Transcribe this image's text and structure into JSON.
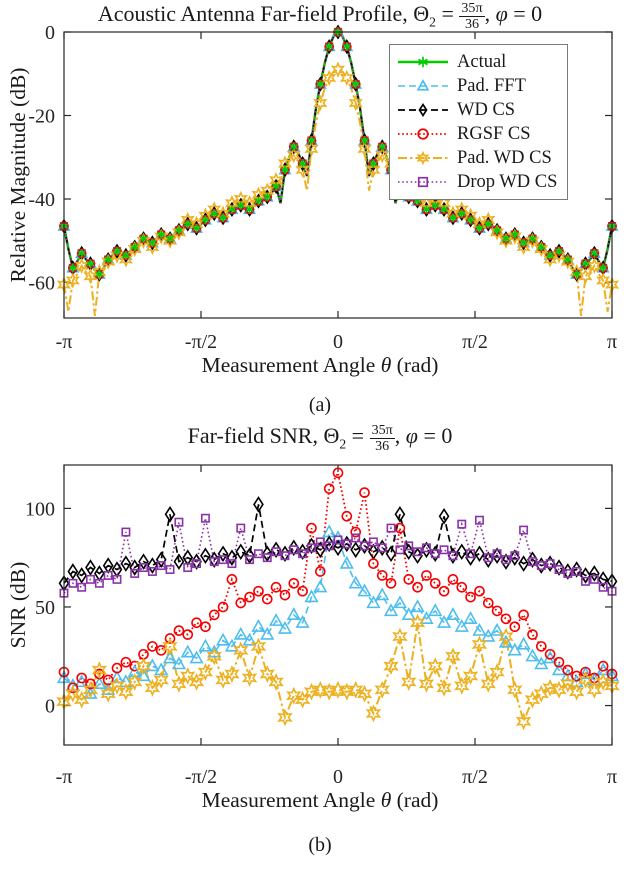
{
  "style": {
    "axis_color": "#262626",
    "background": "#ffffff",
    "text_color": "#1a1a1a",
    "legend_border": "#7a7a7a"
  },
  "chart_data": [
    {
      "type": "line",
      "title": "Acoustic Antenna Far-field Profile, Θ₂ = 35π/36, φ = 0",
      "title_parts": {
        "prefix": "Acoustic Antenna Far-field Profile, ",
        "theta": "Θ",
        "theta_sub": "2",
        "eq": " = ",
        "frac_num": "35π",
        "frac_den": "36",
        "comma": ", ",
        "phi": "φ",
        "phi_eq": " = 0"
      },
      "xlabel": "Measurement Angle θ (rad)",
      "xlabel_parts": {
        "pre": "Measurement Angle ",
        "sym": "θ",
        "post": " (rad)"
      },
      "ylabel": "Relative Magnitude (dB)",
      "caption": "(a)",
      "grid": false,
      "legend_position": "upper right",
      "xlim": [
        -3.1416,
        3.1416
      ],
      "ylim": [
        -68.5,
        0
      ],
      "xticks": [
        -3.1416,
        -1.5708,
        0,
        1.5708,
        3.1416
      ],
      "xtick_labels": [
        "-π",
        "-π/2",
        "0",
        "π/2",
        "π"
      ],
      "yticks": [
        0,
        -20,
        -40,
        -60
      ],
      "ytick_labels": [
        "0",
        "-20",
        "-40",
        "-60"
      ],
      "marker_every": 2,
      "x": [
        -3.142,
        -3.091,
        -3.04,
        -2.99,
        -2.939,
        -2.888,
        -2.838,
        -2.787,
        -2.736,
        -2.686,
        -2.635,
        -2.584,
        -2.534,
        -2.483,
        -2.432,
        -2.382,
        -2.331,
        -2.28,
        -2.23,
        -2.179,
        -2.128,
        -2.078,
        -2.027,
        -1.976,
        -1.926,
        -1.875,
        -1.824,
        -1.774,
        -1.723,
        -1.672,
        -1.622,
        -1.571,
        -1.52,
        -1.47,
        -1.419,
        -1.368,
        -1.318,
        -1.267,
        -1.216,
        -1.166,
        -1.115,
        -1.064,
        -1.014,
        -0.963,
        -0.912,
        -0.862,
        -0.811,
        -0.76,
        -0.71,
        -0.659,
        -0.608,
        -0.558,
        -0.507,
        -0.456,
        -0.406,
        -0.355,
        -0.304,
        -0.254,
        -0.203,
        -0.152,
        -0.101,
        -0.051,
        0,
        0.051,
        0.101,
        0.152,
        0.203,
        0.254,
        0.304,
        0.355,
        0.406,
        0.456,
        0.507,
        0.558,
        0.608,
        0.659,
        0.71,
        0.76,
        0.811,
        0.862,
        0.912,
        0.963,
        1.014,
        1.064,
        1.115,
        1.166,
        1.216,
        1.267,
        1.318,
        1.368,
        1.419,
        1.47,
        1.52,
        1.571,
        1.622,
        1.672,
        1.723,
        1.774,
        1.824,
        1.875,
        1.926,
        1.976,
        2.027,
        2.078,
        2.128,
        2.179,
        2.23,
        2.28,
        2.331,
        2.382,
        2.432,
        2.483,
        2.534,
        2.584,
        2.635,
        2.686,
        2.736,
        2.787,
        2.838,
        2.888,
        2.939,
        2.99,
        3.04,
        3.091,
        3.142
      ],
      "values": {
        "profile": [
          -46.5,
          -52,
          -56.5,
          -55,
          -53,
          -54.5,
          -55.5,
          -57,
          -58,
          -56.5,
          -54.5,
          -53.5,
          -52.5,
          -53,
          -53.5,
          -52.5,
          -51.5,
          -50.5,
          -49.5,
          -50,
          -50.5,
          -49.5,
          -48.5,
          -49,
          -49.5,
          -48.5,
          -47.5,
          -46.5,
          -46,
          -46.5,
          -47,
          -46,
          -45,
          -44,
          -43.5,
          -44,
          -44.5,
          -43.5,
          -42.5,
          -42,
          -41.5,
          -42,
          -42.5,
          -41.5,
          -40.5,
          -40,
          -39.5,
          -38.5,
          -37,
          -41,
          -33,
          -30,
          -27.5,
          -29,
          -31.5,
          -34.5,
          -26,
          -18.5,
          -12.5,
          -7.5,
          -3.5,
          -1,
          0,
          -1,
          -3.5,
          -7.5,
          -12.5,
          -18.5,
          -26,
          -34.5,
          -31.5,
          -29,
          -27.5,
          -30,
          -33,
          -41,
          -37,
          -38.5,
          -39.5,
          -40,
          -40.5,
          -41.5,
          -42.5,
          -42,
          -41.5,
          -42,
          -42.5,
          -43.5,
          -44.5,
          -44,
          -43.5,
          -44,
          -45,
          -46,
          -47,
          -46.5,
          -46,
          -46.5,
          -47.5,
          -48.5,
          -49.5,
          -49,
          -48.5,
          -49.5,
          -50.5,
          -50,
          -49.5,
          -50.5,
          -51.5,
          -52.5,
          -53.5,
          -53,
          -52.5,
          -53.5,
          -54.5,
          -56.5,
          -58,
          -57,
          -55.5,
          -54.5,
          -53,
          -55,
          -56.5,
          -52,
          -46.5
        ],
        "pad_wd_cs": [
          -60.5,
          -67,
          -59.5,
          -58,
          -56,
          -57.5,
          -58.5,
          -68,
          -57.5,
          -56.5,
          -55,
          -54.5,
          -53.5,
          -54,
          -54.5,
          -53.5,
          -52,
          -51,
          -50,
          -50.5,
          -51.5,
          -50,
          -49,
          -49.5,
          -50,
          -49,
          -48,
          -46.5,
          -45,
          -45.5,
          -46,
          -45,
          -44,
          -43,
          -42.5,
          -43,
          -43.5,
          -42.5,
          -41,
          -40.5,
          -40,
          -40.5,
          -41,
          -40,
          -39,
          -38.5,
          -38,
          -36.5,
          -35.5,
          -36,
          -31.5,
          -30,
          -29.5,
          -31,
          -33,
          -38,
          -28,
          -22,
          -17,
          -13.5,
          -11,
          -9.5,
          -9,
          -9.5,
          -11,
          -13.5,
          -17,
          -22,
          -28,
          -38,
          -33,
          -31,
          -29.5,
          -30,
          -31.5,
          -36,
          -35.5,
          -36.5,
          -38,
          -38.5,
          -39,
          -40,
          -41,
          -40.5,
          -40,
          -40.5,
          -41,
          -42.5,
          -43.5,
          -43,
          -42.5,
          -43,
          -44,
          -45,
          -46,
          -45.5,
          -45,
          -46.5,
          -48,
          -49,
          -50,
          -49.5,
          -49,
          -50,
          -51.5,
          -50.5,
          -50,
          -51,
          -52,
          -53.5,
          -54.5,
          -54,
          -53.5,
          -54.5,
          -55,
          -56.5,
          -57.5,
          -68,
          -58.5,
          -57.5,
          -56,
          -58,
          -59.5,
          -67,
          -60.5
        ]
      },
      "series": [
        {
          "name": "Actual",
          "color": "#00CC00",
          "marker": "asterisk",
          "line_style": "solid",
          "line_width": 2.6,
          "values_key": "profile"
        },
        {
          "name": "Pad. FFT",
          "color": "#4DBEEE",
          "marker": "triangle",
          "line_style": "dashed",
          "line_width": 1.6,
          "values_key": "profile"
        },
        {
          "name": "WD CS",
          "color": "#000000",
          "marker": "diamond",
          "line_style": "dashed",
          "line_width": 1.7,
          "values_key": "profile"
        },
        {
          "name": "RGSF CS",
          "color": "#F40000",
          "marker": "circle",
          "line_style": "dotted",
          "line_width": 1.8,
          "values_key": "profile"
        },
        {
          "name": "Pad. WD CS",
          "color": "#EDB120",
          "marker": "star6",
          "line_style": "dashdot",
          "line_width": 2.0,
          "values_key": "pad_wd_cs"
        },
        {
          "name": "Drop WD CS",
          "color": "#8A33A8",
          "marker": "square",
          "line_style": "dotted",
          "line_width": 1.6,
          "values_key": "profile"
        }
      ]
    },
    {
      "type": "line",
      "title": "Far-field SNR, Θ₂ = 35π/36, φ = 0",
      "title_parts": {
        "prefix": "Far-field SNR, ",
        "theta": "Θ",
        "theta_sub": "2",
        "eq": " = ",
        "frac_num": "35π",
        "frac_den": "36",
        "comma": ", ",
        "phi": "φ",
        "phi_eq": " = 0"
      },
      "xlabel": "Measurement Angle θ (rad)",
      "xlabel_parts": {
        "pre": "Measurement Angle ",
        "sym": "θ",
        "post": " (rad)"
      },
      "ylabel": "SNR (dB)",
      "caption": "(b)",
      "grid": false,
      "legend_position": "none",
      "xlim": [
        -3.1416,
        3.1416
      ],
      "ylim": [
        -20,
        122
      ],
      "xticks": [
        -3.1416,
        -1.5708,
        0,
        1.5708,
        3.1416
      ],
      "xtick_labels": [
        "-π",
        "-π/2",
        "0",
        "π/2",
        "π"
      ],
      "yticks": [
        0,
        50,
        100
      ],
      "ytick_labels": [
        "0",
        "50",
        "100"
      ],
      "marker_every": 1,
      "x": [
        -3.142,
        -3.04,
        -2.939,
        -2.838,
        -2.736,
        -2.635,
        -2.534,
        -2.432,
        -2.331,
        -2.23,
        -2.128,
        -2.027,
        -1.926,
        -1.824,
        -1.723,
        -1.622,
        -1.52,
        -1.419,
        -1.318,
        -1.216,
        -1.115,
        -1.014,
        -0.912,
        -0.811,
        -0.71,
        -0.608,
        -0.507,
        -0.406,
        -0.304,
        -0.203,
        -0.101,
        0,
        0.101,
        0.203,
        0.304,
        0.406,
        0.507,
        0.608,
        0.71,
        0.811,
        0.912,
        1.014,
        1.115,
        1.216,
        1.318,
        1.419,
        1.52,
        1.622,
        1.723,
        1.824,
        1.926,
        2.027,
        2.128,
        2.23,
        2.331,
        2.432,
        2.534,
        2.635,
        2.736,
        2.838,
        2.939,
        3.04,
        3.142
      ],
      "values": {
        "pad_fft": [
          14,
          10,
          12,
          6,
          11,
          8,
          14,
          12,
          17,
          15,
          20,
          18,
          24,
          21,
          27,
          24,
          30,
          27,
          33,
          30,
          36,
          33,
          40,
          36,
          43,
          39,
          46,
          42,
          55,
          60,
          88,
          85,
          72,
          62,
          58,
          52,
          56,
          48,
          52,
          46,
          50,
          44,
          48,
          42,
          46,
          40,
          44,
          38,
          35,
          38,
          32,
          28,
          31,
          25,
          21,
          24,
          18,
          15,
          12,
          16,
          13,
          18,
          15
        ],
        "wd_cs": [
          62,
          68,
          66,
          70,
          67,
          71,
          69,
          72,
          70,
          73,
          71,
          74,
          97,
          73,
          75,
          73,
          76,
          74,
          77,
          75,
          78,
          76,
          102,
          77,
          79,
          77,
          80,
          78,
          81,
          79,
          82,
          80,
          82,
          79,
          81,
          78,
          80,
          77,
          97,
          78,
          76,
          79,
          77,
          96,
          76,
          78,
          75,
          77,
          74,
          76,
          73,
          75,
          72,
          74,
          71,
          72,
          70,
          68,
          69,
          66,
          67,
          64,
          63
        ],
        "rgsf_cs": [
          17,
          9,
          14,
          11,
          16,
          13,
          19,
          22,
          20,
          26,
          30,
          28,
          34,
          38,
          36,
          42,
          40,
          46,
          50,
          64,
          52,
          55,
          58,
          54,
          60,
          56,
          62,
          58,
          90,
          68,
          110,
          118,
          96,
          88,
          108,
          72,
          66,
          62,
          90,
          64,
          60,
          66,
          62,
          58,
          64,
          60,
          55,
          58,
          52,
          48,
          44,
          40,
          46,
          36,
          30,
          26,
          22,
          18,
          15,
          17,
          14,
          20,
          16
        ],
        "pad_wd_cs": [
          2,
          6,
          3,
          8,
          18,
          6,
          10,
          7,
          12,
          20,
          9,
          13,
          30,
          11,
          15,
          12,
          17,
          25,
          13,
          16,
          28,
          14,
          30,
          16,
          12,
          -6,
          5,
          3,
          7,
          8,
          7,
          8,
          7,
          8,
          6,
          -4,
          8,
          20,
          35,
          12,
          42,
          11,
          20,
          9,
          25,
          10,
          15,
          31,
          11,
          17,
          35,
          8,
          -8,
          3,
          6,
          9,
          8,
          11,
          7,
          13,
          8,
          12,
          10
        ],
        "drop_wd_cs": [
          57,
          62,
          60,
          64,
          62,
          66,
          64,
          88,
          67,
          70,
          68,
          71,
          69,
          93,
          70,
          72,
          95,
          73,
          74,
          72,
          90,
          74,
          77,
          75,
          78,
          76,
          79,
          77,
          80,
          83,
          81,
          84,
          82,
          85,
          81,
          83,
          80,
          90,
          79,
          81,
          78,
          80,
          77,
          79,
          76,
          92,
          77,
          94,
          75,
          77,
          74,
          76,
          89,
          73,
          71,
          72,
          69,
          67,
          68,
          63,
          64,
          60,
          58
        ]
      },
      "series": [
        {
          "name": "Pad. FFT",
          "color": "#4DBEEE",
          "marker": "triangle",
          "line_style": "dashed",
          "line_width": 1.6,
          "values_key": "pad_fft"
        },
        {
          "name": "WD CS",
          "color": "#000000",
          "marker": "diamond",
          "line_style": "dashed",
          "line_width": 1.7,
          "values_key": "wd_cs"
        },
        {
          "name": "RGSF CS",
          "color": "#F40000",
          "marker": "circle",
          "line_style": "dotted",
          "line_width": 1.8,
          "values_key": "rgsf_cs"
        },
        {
          "name": "Pad. WD CS",
          "color": "#EDB120",
          "marker": "star6",
          "line_style": "dashdot",
          "line_width": 2.0,
          "values_key": "pad_wd_cs"
        },
        {
          "name": "Drop WD CS",
          "color": "#8A33A8",
          "marker": "square",
          "line_style": "dotted",
          "line_width": 1.6,
          "values_key": "drop_wd_cs"
        }
      ]
    }
  ]
}
